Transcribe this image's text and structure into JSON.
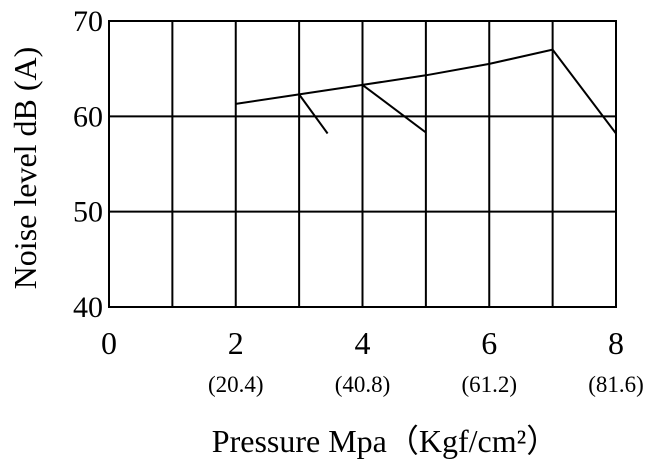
{
  "chart_data": {
    "type": "line",
    "title": "",
    "xlabel": "Pressure Mpa（Kgf/cm²）",
    "ylabel": "Noise level dB (A)",
    "xlim": [
      0,
      8
    ],
    "ylim": [
      40,
      70
    ],
    "x_ticks": [
      "0",
      "2",
      "4",
      "6",
      "8"
    ],
    "x_secondary_ticks": [
      {
        "x": 2,
        "label": "(20.4)"
      },
      {
        "x": 4,
        "label": "(40.8)"
      },
      {
        "x": 6,
        "label": "(61.2)"
      },
      {
        "x": 8,
        "label": "(81.6)"
      }
    ],
    "y_ticks": [
      "40",
      "50",
      "60",
      "70"
    ],
    "grid": {
      "vertical_every": 1,
      "horizontal_every": 10
    },
    "series": [
      {
        "points": [
          [
            2,
            61.3
          ],
          [
            3,
            62.3
          ],
          [
            4,
            63.3
          ],
          [
            5,
            64.3
          ],
          [
            6,
            65.5
          ],
          [
            7,
            67.0
          ],
          [
            8,
            58.2
          ]
        ]
      },
      {
        "points": [
          [
            3,
            62.3
          ],
          [
            3.45,
            58.2
          ]
        ]
      },
      {
        "points": [
          [
            4,
            63.3
          ],
          [
            5,
            58.3
          ]
        ]
      }
    ],
    "line_color": "#000000"
  }
}
